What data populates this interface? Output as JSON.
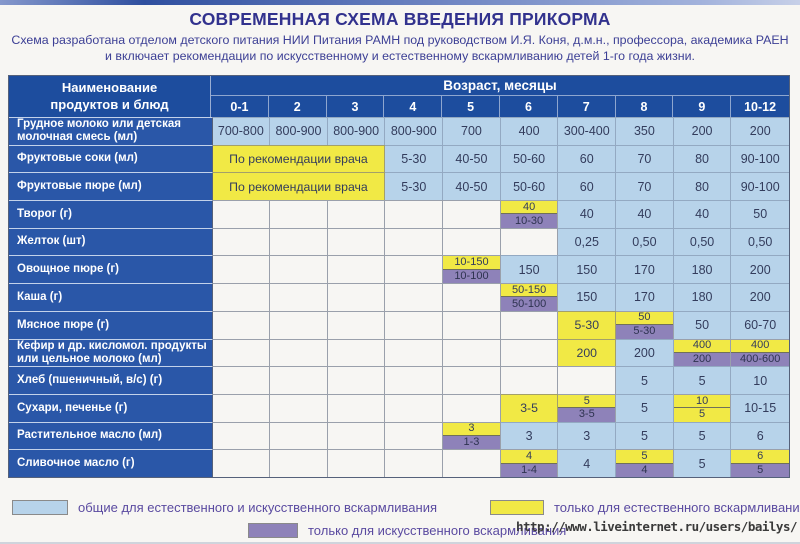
{
  "title": "СОВРЕМЕННАЯ СХЕМА ВВЕДЕНИЯ ПРИКОРМА",
  "subtitle_line1": "Схема разработана отделом детского питания НИИ Питания РАМН под руководством И.Я. Коня,  д.м.н., профессора,  академика РАЕН",
  "subtitle_line2": "и включает рекомендации по искусственному и естественному вскармливанию детей 1-го года жизни.",
  "table": {
    "corner_header": "Наименование продуктов и блюд",
    "age_header": "Возраст, месяцы",
    "age_columns": [
      "0-1",
      "2",
      "3",
      "4",
      "5",
      "6",
      "7",
      "8",
      "9",
      "10-12"
    ],
    "rows": [
      {
        "label": "Грудное молоко или детская молочная смесь (мл)",
        "cells": [
          {
            "t": "b",
            "v": "700-800"
          },
          {
            "t": "b",
            "v": "800-900"
          },
          {
            "t": "b",
            "v": "800-900"
          },
          {
            "t": "b",
            "v": "800-900"
          },
          {
            "t": "b",
            "v": "700"
          },
          {
            "t": "b",
            "v": "400"
          },
          {
            "t": "b",
            "v": "300-400"
          },
          {
            "t": "b",
            "v": "350"
          },
          {
            "t": "b",
            "v": "200"
          },
          {
            "t": "b",
            "v": "200"
          }
        ]
      },
      {
        "label": "Фруктовые соки (мл)",
        "cells": [
          {
            "t": "m",
            "v": "По рекомендации врача",
            "span": 3
          },
          {
            "t": "b",
            "v": "5-30"
          },
          {
            "t": "b",
            "v": "40-50"
          },
          {
            "t": "b",
            "v": "50-60"
          },
          {
            "t": "b",
            "v": "60"
          },
          {
            "t": "b",
            "v": "70"
          },
          {
            "t": "b",
            "v": "80"
          },
          {
            "t": "b",
            "v": "90-100"
          }
        ]
      },
      {
        "label": "Фруктовые пюре (мл)",
        "cells": [
          {
            "t": "m",
            "v": "По рекомендации врача",
            "span": 3
          },
          {
            "t": "b",
            "v": "5-30"
          },
          {
            "t": "b",
            "v": "40-50"
          },
          {
            "t": "b",
            "v": "50-60"
          },
          {
            "t": "b",
            "v": "60"
          },
          {
            "t": "b",
            "v": "70"
          },
          {
            "t": "b",
            "v": "80"
          },
          {
            "t": "b",
            "v": "90-100"
          }
        ]
      },
      {
        "label": "Творог (г)",
        "cells": [
          {
            "t": "e"
          },
          {
            "t": "e"
          },
          {
            "t": "e"
          },
          {
            "t": "e"
          },
          {
            "t": "e"
          },
          {
            "t": "s",
            "top": "40",
            "bot": "10-30",
            "tc": "y",
            "bc": "p"
          },
          {
            "t": "b",
            "v": "40"
          },
          {
            "t": "b",
            "v": "40"
          },
          {
            "t": "b",
            "v": "40"
          },
          {
            "t": "b",
            "v": "50"
          }
        ]
      },
      {
        "label": "Желток (шт)",
        "cells": [
          {
            "t": "e"
          },
          {
            "t": "e"
          },
          {
            "t": "e"
          },
          {
            "t": "e"
          },
          {
            "t": "e"
          },
          {
            "t": "e"
          },
          {
            "t": "b",
            "v": "0,25"
          },
          {
            "t": "b",
            "v": "0,50"
          },
          {
            "t": "b",
            "v": "0,50"
          },
          {
            "t": "b",
            "v": "0,50"
          }
        ]
      },
      {
        "label": "Овощное пюре (г)",
        "cells": [
          {
            "t": "e"
          },
          {
            "t": "e"
          },
          {
            "t": "e"
          },
          {
            "t": "e"
          },
          {
            "t": "s",
            "top": "10-150",
            "bot": "10-100",
            "tc": "y",
            "bc": "p"
          },
          {
            "t": "b",
            "v": "150"
          },
          {
            "t": "b",
            "v": "150"
          },
          {
            "t": "b",
            "v": "170"
          },
          {
            "t": "b",
            "v": "180"
          },
          {
            "t": "b",
            "v": "200"
          }
        ]
      },
      {
        "label": "Каша (г)",
        "cells": [
          {
            "t": "e"
          },
          {
            "t": "e"
          },
          {
            "t": "e"
          },
          {
            "t": "e"
          },
          {
            "t": "e"
          },
          {
            "t": "s",
            "top": "50-150",
            "bot": "50-100",
            "tc": "y",
            "bc": "p"
          },
          {
            "t": "b",
            "v": "150"
          },
          {
            "t": "b",
            "v": "170"
          },
          {
            "t": "b",
            "v": "180"
          },
          {
            "t": "b",
            "v": "200"
          }
        ]
      },
      {
        "label": "Мясное пюре (г)",
        "cells": [
          {
            "t": "e"
          },
          {
            "t": "e"
          },
          {
            "t": "e"
          },
          {
            "t": "e"
          },
          {
            "t": "e"
          },
          {
            "t": "e"
          },
          {
            "t": "y",
            "v": "5-30"
          },
          {
            "t": "s",
            "top": "50",
            "bot": "5-30",
            "tc": "y",
            "bc": "p"
          },
          {
            "t": "b",
            "v": "50"
          },
          {
            "t": "b",
            "v": "60-70"
          }
        ]
      },
      {
        "label": "Кефир и др. кисломол. продукты или цельное молоко (мл)",
        "cells": [
          {
            "t": "e"
          },
          {
            "t": "e"
          },
          {
            "t": "e"
          },
          {
            "t": "e"
          },
          {
            "t": "e"
          },
          {
            "t": "e"
          },
          {
            "t": "y",
            "v": "200"
          },
          {
            "t": "b",
            "v": "200"
          },
          {
            "t": "s",
            "top": "400",
            "bot": "200",
            "tc": "y",
            "bc": "p"
          },
          {
            "t": "s",
            "top": "400",
            "bot": "400-600",
            "tc": "y",
            "bc": "p"
          }
        ]
      },
      {
        "label": "Хлеб (пшеничный, в/с) (г)",
        "cells": [
          {
            "t": "e"
          },
          {
            "t": "e"
          },
          {
            "t": "e"
          },
          {
            "t": "e"
          },
          {
            "t": "e"
          },
          {
            "t": "e"
          },
          {
            "t": "e"
          },
          {
            "t": "b",
            "v": "5"
          },
          {
            "t": "b",
            "v": "5"
          },
          {
            "t": "b",
            "v": "10"
          }
        ]
      },
      {
        "label": "Сухари,  печенье (г)",
        "cells": [
          {
            "t": "e"
          },
          {
            "t": "e"
          },
          {
            "t": "e"
          },
          {
            "t": "e"
          },
          {
            "t": "e"
          },
          {
            "t": "y",
            "v": "3-5"
          },
          {
            "t": "s",
            "top": "5",
            "bot": "3-5",
            "tc": "y",
            "bc": "p"
          },
          {
            "t": "b",
            "v": "5"
          },
          {
            "t": "s",
            "top": "10",
            "bot": "5",
            "tc": "y",
            "bc": "y"
          },
          {
            "t": "b",
            "v": "10-15"
          }
        ]
      },
      {
        "label": "Растительное масло (мл)",
        "cells": [
          {
            "t": "e"
          },
          {
            "t": "e"
          },
          {
            "t": "e"
          },
          {
            "t": "e"
          },
          {
            "t": "s",
            "top": "3",
            "bot": "1-3",
            "tc": "y",
            "bc": "p"
          },
          {
            "t": "b",
            "v": "3"
          },
          {
            "t": "b",
            "v": "3"
          },
          {
            "t": "b",
            "v": "5"
          },
          {
            "t": "b",
            "v": "5"
          },
          {
            "t": "b",
            "v": "6"
          }
        ]
      },
      {
        "label": "Сливочное масло (г)",
        "cells": [
          {
            "t": "e"
          },
          {
            "t": "e"
          },
          {
            "t": "e"
          },
          {
            "t": "e"
          },
          {
            "t": "e"
          },
          {
            "t": "s",
            "top": "4",
            "bot": "1-4",
            "tc": "y",
            "bc": "p"
          },
          {
            "t": "b",
            "v": "4"
          },
          {
            "t": "s",
            "top": "5",
            "bot": "4",
            "tc": "y",
            "bc": "p"
          },
          {
            "t": "b",
            "v": "5"
          },
          {
            "t": "s",
            "top": "6",
            "bot": "5",
            "tc": "y",
            "bc": "p"
          }
        ]
      }
    ]
  },
  "legend": [
    {
      "color": "#b7d3ea",
      "label": "общие для естественного и искусственного вскармливания"
    },
    {
      "color": "#f1e945",
      "label": "только для естественного вскармливания"
    },
    {
      "color": "#8e82b9",
      "label": "только для искусственного вскармливания"
    }
  ],
  "watermark_url": "http://www.liveinternet.ru/users/bailys/",
  "colors": {
    "header_blue": "#1d4d9e",
    "label_blue": "#2a57a8",
    "cell_blue": "#b7d3ea",
    "cell_yellow": "#f1e945",
    "cell_purple": "#8e82b9",
    "empty_bg": "#f7f6f3",
    "grid_line": "#9aa0ab",
    "value_text": "#333c5c",
    "title_text": "#32328e",
    "legend_text": "#5a4aa0"
  }
}
